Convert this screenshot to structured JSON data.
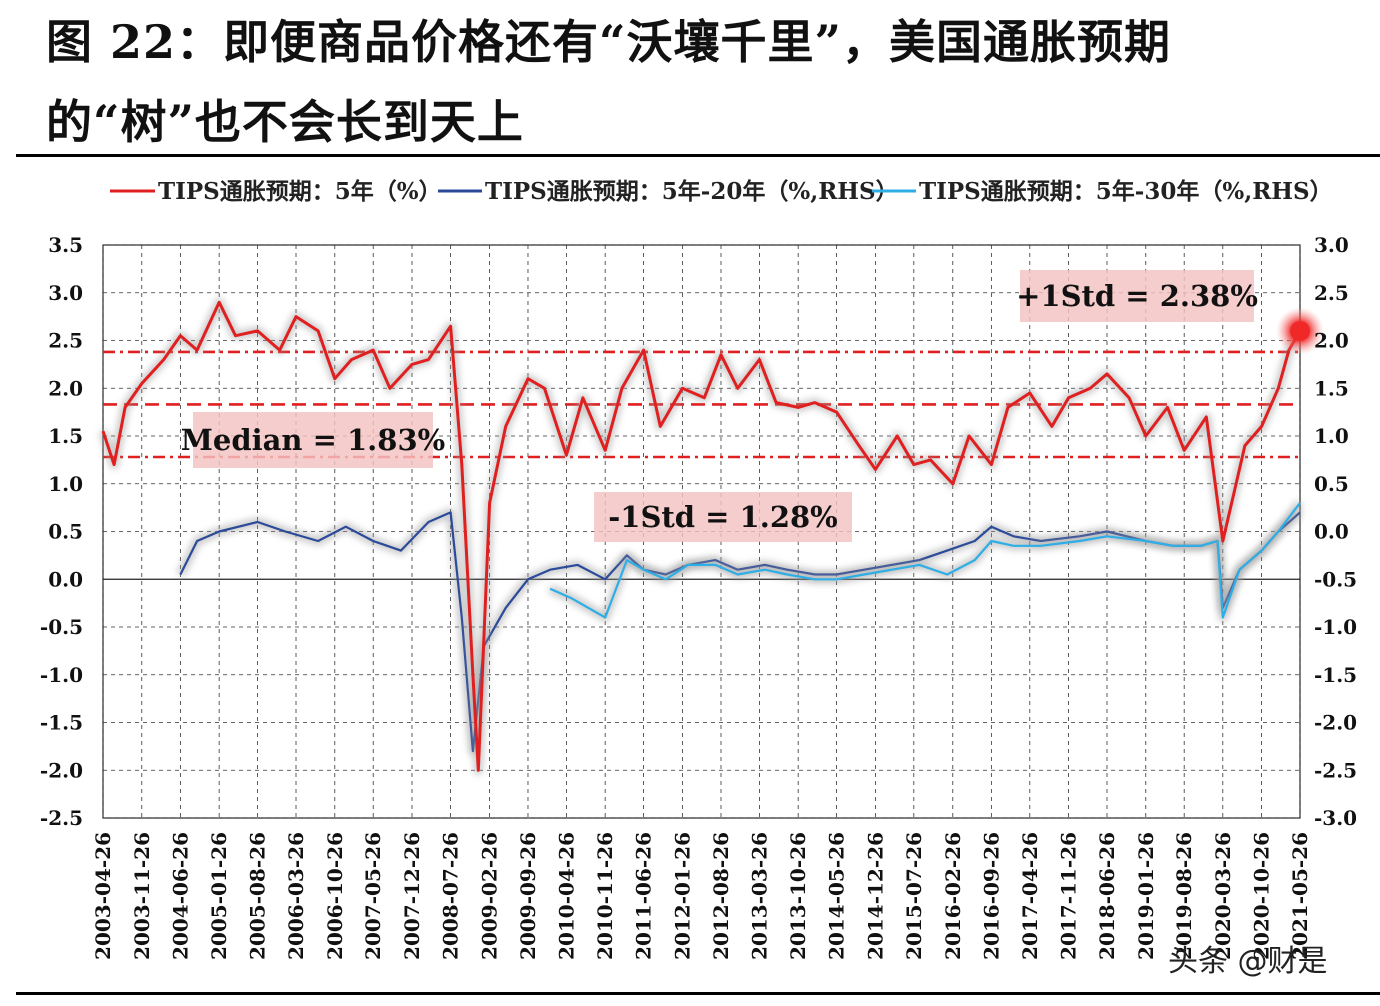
{
  "page": {
    "title": "图 22：即便商品价格还有“沃壤千里”，美国通胀预期的“树”也不会长到天上",
    "watermark": "头条 @财是"
  },
  "colors": {
    "red": "#e02020",
    "navy": "#2b4a9a",
    "cyan": "#2eaee6",
    "grid": "#333333"
  },
  "chart_data": {
    "type": "line",
    "legend": {
      "placement": "top"
    },
    "grid": true,
    "y_left": {
      "min": -2.5,
      "max": 3.5,
      "ticks": [
        "3.5",
        "3.0",
        "2.5",
        "2.0",
        "1.5",
        "1.0",
        "0.5",
        "0.0",
        "-0.5",
        "-1.0",
        "-1.5",
        "-2.0",
        "-2.5"
      ]
    },
    "y_right": {
      "min": -3.0,
      "max": 3.0,
      "ticks": [
        "3.0",
        "2.5",
        "2.0",
        "1.5",
        "1.0",
        "0.5",
        "0.0",
        "-0.5",
        "-1.0",
        "-1.5",
        "-2.0",
        "-2.5",
        "-3.0"
      ]
    },
    "x_ticks": [
      "2003-04-26",
      "2003-11-26",
      "2004-06-26",
      "2005-01-26",
      "2005-08-26",
      "2006-03-26",
      "2006-10-26",
      "2007-05-26",
      "2007-12-26",
      "2008-07-26",
      "2009-02-26",
      "2009-09-26",
      "2010-04-26",
      "2010-11-26",
      "2011-06-26",
      "2012-01-26",
      "2012-08-26",
      "2013-03-26",
      "2013-10-26",
      "2014-05-26",
      "2014-12-26",
      "2015-07-26",
      "2016-02-26",
      "2016-09-26",
      "2017-04-26",
      "2017-11-26",
      "2018-06-26",
      "2019-01-26",
      "2019-08-26",
      "2020-03-26",
      "2020-10-26",
      "2021-05-26"
    ],
    "reference_lines": [
      {
        "label": "+1Std = 2.38%",
        "value": 2.38,
        "style": "dash-dot"
      },
      {
        "label": "Median = 1.83%",
        "value": 1.83,
        "style": "dashed"
      },
      {
        "label": "-1Std = 1.28%",
        "value": 1.28,
        "style": "dash-dot"
      }
    ],
    "series": [
      {
        "name": "TIPS通胀预期：5年（%）",
        "axis": "left",
        "x": [
          "2003-04-26",
          "2003-06-26",
          "2003-08-26",
          "2003-11-26",
          "2004-03-26",
          "2004-06-26",
          "2004-09-26",
          "2005-01-26",
          "2005-04-26",
          "2005-08-26",
          "2005-12-26",
          "2006-03-26",
          "2006-07-26",
          "2006-10-26",
          "2007-01-26",
          "2007-05-26",
          "2007-08-26",
          "2007-12-26",
          "2008-03-26",
          "2008-07-26",
          "2008-09-26",
          "2008-11-26",
          "2008-12-26",
          "2009-02-26",
          "2009-05-26",
          "2009-09-26",
          "2009-12-26",
          "2010-04-26",
          "2010-07-26",
          "2010-11-26",
          "2011-02-26",
          "2011-06-26",
          "2011-09-26",
          "2012-01-26",
          "2012-05-26",
          "2012-08-26",
          "2012-11-26",
          "2013-03-26",
          "2013-06-26",
          "2013-10-26",
          "2014-01-26",
          "2014-05-26",
          "2014-09-26",
          "2014-12-26",
          "2015-04-26",
          "2015-07-26",
          "2015-10-26",
          "2016-02-26",
          "2016-05-26",
          "2016-09-26",
          "2016-12-26",
          "2017-04-26",
          "2017-08-26",
          "2017-11-26",
          "2018-03-26",
          "2018-06-26",
          "2018-10-26",
          "2019-01-26",
          "2019-05-26",
          "2019-08-26",
          "2019-12-26",
          "2020-03-26",
          "2020-05-26",
          "2020-07-26",
          "2020-10-26",
          "2021-01-26",
          "2021-03-26",
          "2021-05-26"
        ],
        "values": [
          1.55,
          1.2,
          1.8,
          2.05,
          2.3,
          2.55,
          2.4,
          2.9,
          2.55,
          2.6,
          2.4,
          2.75,
          2.6,
          2.1,
          2.3,
          2.4,
          2.0,
          2.25,
          2.3,
          2.65,
          1.2,
          -1.0,
          -2.0,
          0.8,
          1.6,
          2.1,
          2.0,
          1.3,
          1.9,
          1.35,
          2.0,
          2.4,
          1.6,
          2.0,
          1.9,
          2.35,
          2.0,
          2.3,
          1.85,
          1.8,
          1.85,
          1.75,
          1.4,
          1.15,
          1.5,
          1.2,
          1.25,
          1.0,
          1.5,
          1.2,
          1.8,
          1.95,
          1.6,
          1.9,
          2.0,
          2.15,
          1.9,
          1.5,
          1.8,
          1.35,
          1.7,
          0.4,
          0.9,
          1.4,
          1.6,
          2.0,
          2.4,
          2.6
        ]
      },
      {
        "name": "TIPS通胀预期：5年-20年（%,RHS）",
        "axis": "right",
        "x": [
          "2004-06-26",
          "2004-09-26",
          "2005-01-26",
          "2005-08-26",
          "2006-01-26",
          "2006-07-26",
          "2006-12-26",
          "2007-05-26",
          "2007-10-26",
          "2008-03-26",
          "2008-07-26",
          "2008-09-26",
          "2008-11-26",
          "2009-01-26",
          "2009-05-26",
          "2009-09-26",
          "2010-01-26",
          "2010-06-26",
          "2010-11-26",
          "2011-03-26",
          "2011-06-26",
          "2011-10-26",
          "2012-02-26",
          "2012-07-26",
          "2012-11-26",
          "2013-04-26",
          "2013-08-26",
          "2014-01-26",
          "2014-05-26",
          "2014-10-26",
          "2015-03-26",
          "2015-08-26",
          "2016-01-26",
          "2016-06-26",
          "2016-09-26",
          "2017-01-26",
          "2017-06-26",
          "2018-01-26",
          "2018-06-26",
          "2019-01-26",
          "2019-06-26",
          "2019-11-26",
          "2020-02-26",
          "2020-03-26",
          "2020-06-26",
          "2020-10-26",
          "2021-01-26",
          "2021-05-26"
        ],
        "values": [
          -0.45,
          -0.1,
          0.0,
          0.1,
          0.0,
          -0.1,
          0.05,
          -0.1,
          -0.2,
          0.1,
          0.2,
          -0.9,
          -2.3,
          -1.2,
          -0.8,
          -0.5,
          -0.4,
          -0.35,
          -0.5,
          -0.25,
          -0.4,
          -0.45,
          -0.35,
          -0.3,
          -0.4,
          -0.35,
          -0.4,
          -0.45,
          -0.45,
          -0.4,
          -0.35,
          -0.3,
          -0.2,
          -0.1,
          0.05,
          -0.05,
          -0.1,
          -0.05,
          0.0,
          -0.1,
          -0.15,
          -0.15,
          -0.1,
          -0.8,
          -0.4,
          -0.2,
          0.0,
          0.2
        ]
      },
      {
        "name": "TIPS通胀预期：5年-30年（%,RHS）",
        "axis": "right",
        "x": [
          "2010-01-26",
          "2010-05-26",
          "2010-11-26",
          "2011-03-26",
          "2011-06-26",
          "2011-10-26",
          "2012-02-26",
          "2012-07-26",
          "2012-11-26",
          "2013-04-26",
          "2013-08-26",
          "2014-01-26",
          "2014-05-26",
          "2014-10-26",
          "2015-03-26",
          "2015-08-26",
          "2016-01-26",
          "2016-06-26",
          "2016-09-26",
          "2017-01-26",
          "2017-06-26",
          "2018-01-26",
          "2018-06-26",
          "2019-01-26",
          "2019-06-26",
          "2019-11-26",
          "2020-02-26",
          "2020-03-26",
          "2020-06-26",
          "2020-10-26",
          "2021-01-26",
          "2021-05-26"
        ],
        "values": [
          -0.6,
          -0.7,
          -0.9,
          -0.3,
          -0.4,
          -0.5,
          -0.35,
          -0.35,
          -0.45,
          -0.4,
          -0.45,
          -0.5,
          -0.5,
          -0.45,
          -0.4,
          -0.35,
          -0.45,
          -0.3,
          -0.1,
          -0.15,
          -0.15,
          -0.1,
          -0.05,
          -0.1,
          -0.15,
          -0.15,
          -0.1,
          -0.9,
          -0.4,
          -0.2,
          0.0,
          0.3
        ]
      }
    ]
  }
}
